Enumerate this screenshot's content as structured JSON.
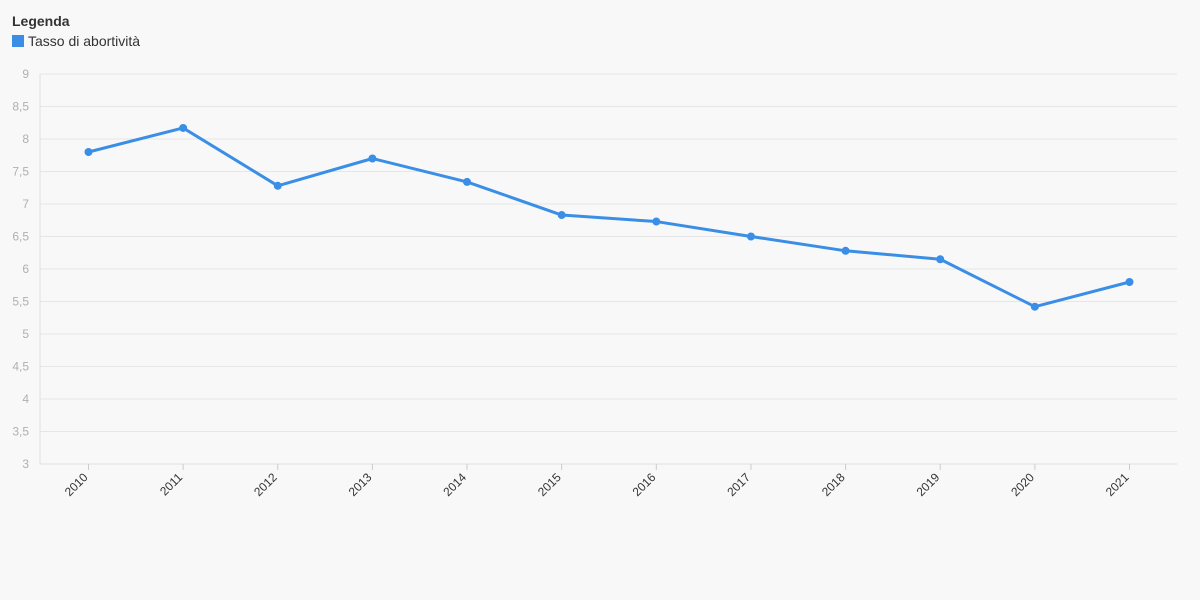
{
  "legend": {
    "title": "Legenda",
    "items": [
      {
        "label": "Tasso di abortività",
        "color": "#3a8ee6"
      }
    ]
  },
  "chart_data": {
    "type": "line",
    "title": "",
    "xlabel": "",
    "ylabel": "",
    "x": [
      "2010",
      "2011",
      "2012",
      "2013",
      "2014",
      "2015",
      "2016",
      "2017",
      "2018",
      "2019",
      "2020",
      "2021"
    ],
    "series": [
      {
        "name": "Tasso di abortività",
        "color": "#3a8ee6",
        "values": [
          7.8,
          8.17,
          7.28,
          7.7,
          7.34,
          6.83,
          6.73,
          6.5,
          6.28,
          6.15,
          5.42,
          5.8
        ]
      }
    ],
    "ylim": [
      3,
      9
    ],
    "yticks": [
      "3",
      "3,5",
      "4",
      "4,5",
      "5",
      "5,5",
      "6",
      "6,5",
      "7",
      "7,5",
      "8",
      "8,5",
      "9"
    ],
    "grid": true,
    "legend_position": "top-left"
  }
}
